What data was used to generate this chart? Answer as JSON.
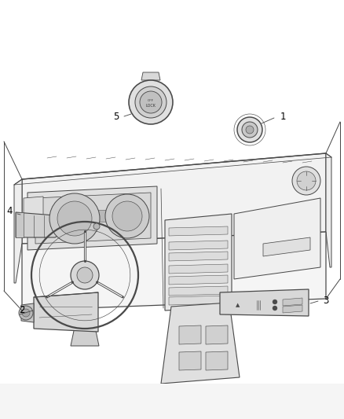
{
  "bg_color": "#ffffff",
  "line_color": "#4a4a4a",
  "fig_width": 4.38,
  "fig_height": 5.33,
  "dpi": 100,
  "font_size": 8.5,
  "line_width": 0.9
}
